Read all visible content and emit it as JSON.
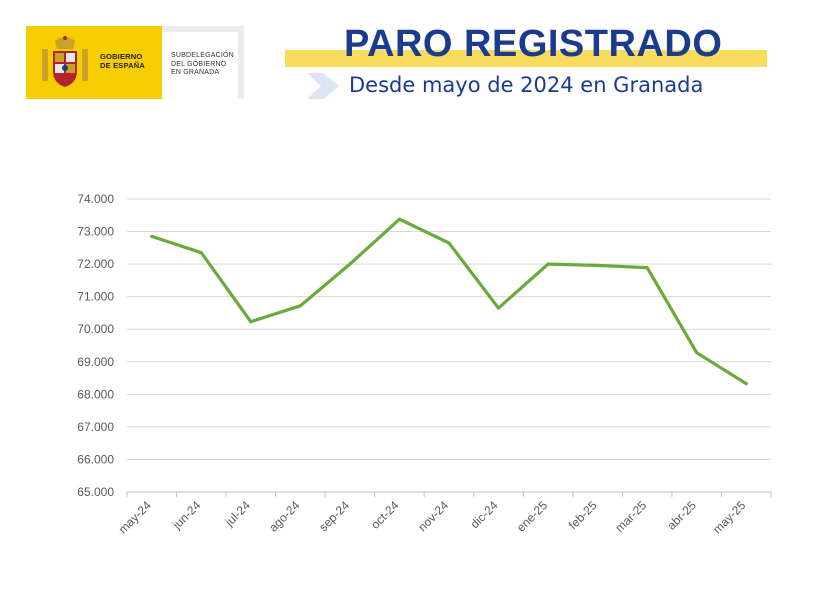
{
  "header": {
    "logo_main": "GOBIERNO\nDE ESPAÑA",
    "logo_sub": "SUBDELEGACIÓN\nDEL GOBIERNO\nEN GRANADA",
    "title": "PARO REGISTRADO",
    "subtitle": "Desde mayo de 2024 en Granada",
    "colors": {
      "brand_yellow": "#f6cd00",
      "title_blue": "#1b3b8f",
      "band_yellow": "#f9dc5c"
    },
    "icons": [
      "coat-of-arms-icon",
      "chevron-right-icon"
    ]
  },
  "chart_data": {
    "type": "line",
    "title": "",
    "xlabel": "",
    "ylabel": "",
    "categories": [
      "may-24",
      "jun-24",
      "jul-24",
      "ago-24",
      "sep-24",
      "oct-24",
      "nov-24",
      "dic-24",
      "ene-25",
      "feb-25",
      "mar-25",
      "abr-25",
      "may-25"
    ],
    "series": [
      {
        "values": [
          72850,
          72350,
          70230,
          70720,
          72000,
          73380,
          72650,
          70650,
          72000,
          71960,
          71890,
          69280,
          68330
        ],
        "color": "#6aaa3a"
      }
    ],
    "ylim": [
      65000,
      74000
    ],
    "yticks": [
      "65.000",
      "66.000",
      "67.000",
      "68.000",
      "69.000",
      "70.000",
      "71.000",
      "72.000",
      "73.000",
      "74.000"
    ],
    "grid": true,
    "legend": "none"
  }
}
